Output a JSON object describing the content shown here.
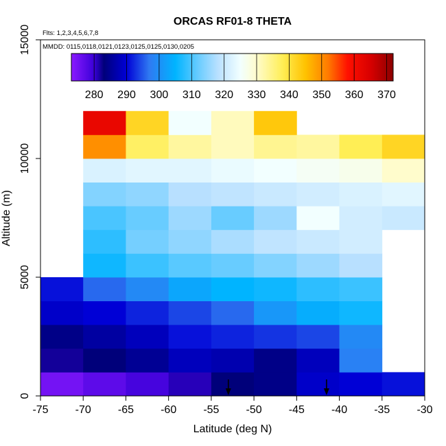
{
  "chart_data": {
    "type": "heatmap",
    "title": "ORCAS RF01-8 THETA",
    "subtitle_flights": "Flts: 1,2,3,4,5,6,7,8",
    "subtitle_dates": "MMDD: 0115,0118,0121,0123,0125,0125,0130,0205",
    "xlabel": "Latitude (deg N)",
    "ylabel": "Altitude (m)",
    "xlim": [
      -75,
      -30
    ],
    "ylim": [
      0,
      15000
    ],
    "x_ticks": [
      -75,
      -70,
      -65,
      -60,
      -55,
      -50,
      -45,
      -40,
      -35,
      -30
    ],
    "y_ticks": [
      0,
      5000,
      10000,
      15000
    ],
    "colorbar": {
      "label_values": [
        280,
        290,
        300,
        310,
        320,
        330,
        340,
        350,
        360,
        370
      ],
      "min": 273,
      "max": 372,
      "stops": [
        {
          "v": 273,
          "c": "#8b1aff"
        },
        {
          "v": 280,
          "c": "#3a00d8"
        },
        {
          "v": 283,
          "c": "#00007a"
        },
        {
          "v": 290,
          "c": "#0000d6"
        },
        {
          "v": 297,
          "c": "#2f7af2"
        },
        {
          "v": 305,
          "c": "#00b4ff"
        },
        {
          "v": 312,
          "c": "#68ccff"
        },
        {
          "v": 318,
          "c": "#b8e0ff"
        },
        {
          "v": 325,
          "c": "#f2ffff"
        },
        {
          "v": 330,
          "c": "#fffccc"
        },
        {
          "v": 338,
          "c": "#ffee55"
        },
        {
          "v": 345,
          "c": "#ffc200"
        },
        {
          "v": 352,
          "c": "#ff7a00"
        },
        {
          "v": 358,
          "c": "#ff1000"
        },
        {
          "v": 365,
          "c": "#d80000"
        },
        {
          "v": 372,
          "c": "#8b0000"
        }
      ]
    },
    "grid": {
      "lat_edges": [
        -75,
        -70,
        -65,
        -60,
        -55,
        -50,
        -45,
        -40,
        -35,
        -30
      ],
      "alt_edges": [
        0,
        1000,
        2000,
        3000,
        4000,
        5000,
        6000,
        7000,
        8000,
        9000,
        10000,
        11000,
        12000
      ],
      "theta": [
        [
          275,
          277,
          279,
          281,
          283,
          284,
          289,
          290,
          291
        ],
        [
          282,
          283,
          285,
          288,
          287,
          284,
          288,
          298,
          null
        ],
        [
          284,
          286,
          288,
          291,
          292,
          293,
          294,
          299,
          null
        ],
        [
          289,
          290,
          292,
          294,
          296,
          301,
          304,
          306,
          null
        ],
        [
          291,
          296,
          299,
          303,
          305,
          306,
          308,
          309,
          null
        ],
        [
          null,
          306,
          309,
          311,
          312,
          314,
          316,
          318,
          null
        ],
        [
          null,
          308,
          313,
          315,
          317,
          319,
          320,
          321,
          null
        ],
        [
          null,
          310,
          312,
          316,
          312,
          316,
          325,
          321,
          320
        ],
        [
          null,
          314,
          315,
          318,
          319,
          320,
          321,
          322,
          323
        ],
        [
          null,
          322,
          323,
          323,
          324,
          325,
          326,
          327,
          330
        ],
        [
          null,
          350,
          337,
          333,
          331,
          334,
          333,
          338,
          342
        ],
        [
          null,
          362,
          342,
          325,
          331,
          344,
          null,
          null,
          null
        ]
      ]
    },
    "annotations": {
      "arrow_latitudes": [
        -53,
        -41.5
      ]
    }
  }
}
